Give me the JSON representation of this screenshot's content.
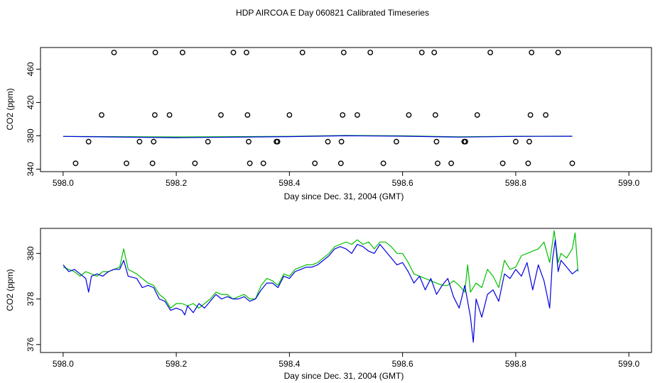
{
  "title": "HDP AIRCOA E  Day 060821  Calibrated Timeseries",
  "colors": {
    "green": "#00c000",
    "blue": "#0000e0",
    "axes": "#000000",
    "points": "#000000"
  },
  "chart_data": [
    {
      "type": "line",
      "xlabel": "Day since Dec. 31, 2004 (GMT)",
      "ylabel": "CO2 (ppm)",
      "xlim": [
        597.96,
        599.04
      ],
      "ylim": [
        337,
        486
      ],
      "xticks": [
        "598.0",
        "598.2",
        "598.4",
        "598.6",
        "598.8",
        "599.0"
      ],
      "yticks": [
        "340",
        "380",
        "420",
        "460"
      ],
      "scatter_points": [
        [
          598.022,
          347
        ],
        [
          598.045,
          373
        ],
        [
          598.068,
          405
        ],
        [
          598.09,
          480
        ],
        [
          598.112,
          347
        ],
        [
          598.135,
          373
        ],
        [
          598.158,
          347
        ],
        [
          598.16,
          373
        ],
        [
          598.162,
          405
        ],
        [
          598.163,
          480
        ],
        [
          598.188,
          405
        ],
        [
          598.211,
          480
        ],
        [
          598.233,
          347
        ],
        [
          598.256,
          373
        ],
        [
          598.279,
          405
        ],
        [
          598.301,
          480
        ],
        [
          598.324,
          480
        ],
        [
          598.326,
          405
        ],
        [
          598.328,
          373
        ],
        [
          598.33,
          347
        ],
        [
          598.354,
          347
        ],
        [
          598.377,
          373
        ],
        [
          598.379,
          373
        ],
        [
          598.4,
          405
        ],
        [
          598.423,
          480
        ],
        [
          598.445,
          347
        ],
        [
          598.468,
          373
        ],
        [
          598.491,
          347
        ],
        [
          598.492,
          373
        ],
        [
          598.494,
          405
        ],
        [
          598.496,
          480
        ],
        [
          598.52,
          405
        ],
        [
          598.543,
          480
        ],
        [
          598.566,
          347
        ],
        [
          598.589,
          373
        ],
        [
          598.611,
          405
        ],
        [
          598.634,
          480
        ],
        [
          598.656,
          480
        ],
        [
          598.658,
          405
        ],
        [
          598.66,
          373
        ],
        [
          598.662,
          347
        ],
        [
          598.686,
          347
        ],
        [
          598.709,
          373
        ],
        [
          598.711,
          373
        ],
        [
          598.732,
          405
        ],
        [
          598.755,
          480
        ],
        [
          598.777,
          347
        ],
        [
          598.8,
          373
        ],
        [
          598.822,
          347
        ],
        [
          598.824,
          373
        ],
        [
          598.826,
          405
        ],
        [
          598.828,
          480
        ],
        [
          598.853,
          405
        ],
        [
          598.875,
          480
        ],
        [
          598.9,
          347
        ]
      ],
      "series": [
        {
          "color": "green",
          "values": [
            [
              598.0,
              379.3
            ],
            [
              598.2,
              378.6
            ],
            [
              598.4,
              379.4
            ],
            [
              598.5,
              380.4
            ],
            [
              598.6,
              380.0
            ],
            [
              598.7,
              378.8
            ],
            [
              598.8,
              379.5
            ],
            [
              598.9,
              379.6
            ]
          ]
        },
        {
          "color": "blue",
          "values": [
            [
              598.0,
              379.3
            ],
            [
              598.2,
              377.8
            ],
            [
              598.4,
              379.1
            ],
            [
              598.5,
              380.1
            ],
            [
              598.6,
              379.6
            ],
            [
              598.7,
              378.5
            ],
            [
              598.8,
              379.3
            ],
            [
              598.9,
              379.5
            ]
          ]
        }
      ]
    },
    {
      "type": "line",
      "xlabel": "Day since Dec. 31, 2004 (GMT)",
      "ylabel": "CO2 (ppm)",
      "xlim": [
        597.96,
        599.04
      ],
      "ylim": [
        375.65,
        381.1
      ],
      "xticks": [
        "598.0",
        "598.2",
        "598.4",
        "598.6",
        "598.8",
        "599.0"
      ],
      "yticks": [
        "376",
        "378",
        "380"
      ],
      "series": [
        {
          "color": "green",
          "values": [
            [
              598.0,
              379.4
            ],
            [
              598.01,
              379.3
            ],
            [
              598.02,
              379.2
            ],
            [
              598.03,
              379.0
            ],
            [
              598.04,
              379.2
            ],
            [
              598.05,
              379.1
            ],
            [
              598.06,
              379.0
            ],
            [
              598.07,
              379.2
            ],
            [
              598.08,
              379.2
            ],
            [
              598.09,
              379.3
            ],
            [
              598.1,
              379.4
            ],
            [
              598.107,
              380.2
            ],
            [
              598.115,
              379.3
            ],
            [
              598.13,
              379.1
            ],
            [
              598.14,
              378.9
            ],
            [
              598.15,
              378.7
            ],
            [
              598.16,
              378.6
            ],
            [
              598.17,
              378.2
            ],
            [
              598.18,
              378.0
            ],
            [
              598.19,
              377.6
            ],
            [
              598.2,
              377.8
            ],
            [
              598.21,
              377.8
            ],
            [
              598.22,
              377.7
            ],
            [
              598.23,
              377.8
            ],
            [
              598.24,
              377.6
            ],
            [
              598.25,
              377.8
            ],
            [
              598.26,
              378.0
            ],
            [
              598.27,
              378.3
            ],
            [
              598.28,
              378.2
            ],
            [
              598.29,
              378.2
            ],
            [
              598.3,
              378.0
            ],
            [
              598.31,
              378.1
            ],
            [
              598.32,
              378.2
            ],
            [
              598.33,
              378.0
            ],
            [
              598.34,
              378.0
            ],
            [
              598.35,
              378.6
            ],
            [
              598.36,
              378.9
            ],
            [
              598.37,
              378.8
            ],
            [
              598.38,
              378.6
            ],
            [
              598.39,
              379.1
            ],
            [
              598.4,
              379.0
            ],
            [
              598.41,
              379.3
            ],
            [
              598.42,
              379.4
            ],
            [
              598.43,
              379.5
            ],
            [
              598.44,
              379.5
            ],
            [
              598.45,
              379.6
            ],
            [
              598.46,
              379.8
            ],
            [
              598.47,
              380.0
            ],
            [
              598.48,
              380.3
            ],
            [
              598.49,
              380.4
            ],
            [
              598.5,
              380.5
            ],
            [
              598.51,
              380.4
            ],
            [
              598.52,
              380.6
            ],
            [
              598.53,
              380.4
            ],
            [
              598.54,
              380.5
            ],
            [
              598.55,
              380.2
            ],
            [
              598.56,
              380.5
            ],
            [
              598.57,
              380.5
            ],
            [
              598.58,
              380.3
            ],
            [
              598.59,
              380.0
            ],
            [
              598.6,
              380.0
            ],
            [
              598.61,
              379.6
            ],
            [
              598.62,
              379.1
            ],
            [
              598.63,
              379.0
            ],
            [
              598.64,
              378.9
            ],
            [
              598.65,
              378.8
            ],
            [
              598.66,
              378.7
            ],
            [
              598.67,
              378.6
            ],
            [
              598.68,
              378.6
            ],
            [
              598.69,
              378.8
            ],
            [
              598.7,
              378.6
            ],
            [
              598.71,
              378.3
            ],
            [
              598.715,
              379.5
            ],
            [
              598.72,
              378.3
            ],
            [
              598.73,
              378.7
            ],
            [
              598.74,
              378.5
            ],
            [
              598.75,
              379.3
            ],
            [
              598.76,
              379.0
            ],
            [
              598.77,
              378.5
            ],
            [
              598.78,
              379.7
            ],
            [
              598.79,
              379.3
            ],
            [
              598.8,
              379.4
            ],
            [
              598.81,
              379.9
            ],
            [
              598.82,
              380.0
            ],
            [
              598.83,
              380.1
            ],
            [
              598.84,
              380.2
            ],
            [
              598.85,
              380.5
            ],
            [
              598.86,
              379.6
            ],
            [
              598.868,
              381.0
            ],
            [
              598.875,
              379.6
            ],
            [
              598.88,
              380.0
            ],
            [
              598.89,
              379.8
            ],
            [
              598.9,
              380.2
            ],
            [
              598.905,
              380.9
            ],
            [
              598.91,
              379.2
            ]
          ]
        },
        {
          "color": "blue",
          "values": [
            [
              598.0,
              379.5
            ],
            [
              598.01,
              379.2
            ],
            [
              598.02,
              379.3
            ],
            [
              598.03,
              379.1
            ],
            [
              598.04,
              378.9
            ],
            [
              598.045,
              378.3
            ],
            [
              598.05,
              379.0
            ],
            [
              598.06,
              379.1
            ],
            [
              598.07,
              379.0
            ],
            [
              598.08,
              379.2
            ],
            [
              598.09,
              379.3
            ],
            [
              598.1,
              379.3
            ],
            [
              598.107,
              379.7
            ],
            [
              598.115,
              379.0
            ],
            [
              598.13,
              378.9
            ],
            [
              598.14,
              378.5
            ],
            [
              598.15,
              378.6
            ],
            [
              598.16,
              378.5
            ],
            [
              598.17,
              378.0
            ],
            [
              598.18,
              377.9
            ],
            [
              598.19,
              377.5
            ],
            [
              598.2,
              377.6
            ],
            [
              598.21,
              377.5
            ],
            [
              598.215,
              377.3
            ],
            [
              598.22,
              377.7
            ],
            [
              598.23,
              377.4
            ],
            [
              598.24,
              377.8
            ],
            [
              598.25,
              377.6
            ],
            [
              598.26,
              377.9
            ],
            [
              598.27,
              378.2
            ],
            [
              598.28,
              378.0
            ],
            [
              598.29,
              378.1
            ],
            [
              598.3,
              378.0
            ],
            [
              598.31,
              378.0
            ],
            [
              598.32,
              378.1
            ],
            [
              598.33,
              377.9
            ],
            [
              598.34,
              378.0
            ],
            [
              598.35,
              378.4
            ],
            [
              598.36,
              378.7
            ],
            [
              598.37,
              378.7
            ],
            [
              598.38,
              378.5
            ],
            [
              598.39,
              379.0
            ],
            [
              598.4,
              378.9
            ],
            [
              598.41,
              379.2
            ],
            [
              598.42,
              379.3
            ],
            [
              598.43,
              379.4
            ],
            [
              598.44,
              379.4
            ],
            [
              598.45,
              379.5
            ],
            [
              598.46,
              379.7
            ],
            [
              598.47,
              379.9
            ],
            [
              598.48,
              380.2
            ],
            [
              598.49,
              380.3
            ],
            [
              598.5,
              380.2
            ],
            [
              598.51,
              380.0
            ],
            [
              598.52,
              380.4
            ],
            [
              598.53,
              380.3
            ],
            [
              598.54,
              380.1
            ],
            [
              598.55,
              380.0
            ],
            [
              598.56,
              380.4
            ],
            [
              598.57,
              380.1
            ],
            [
              598.58,
              379.8
            ],
            [
              598.59,
              379.5
            ],
            [
              598.6,
              379.6
            ],
            [
              598.61,
              379.2
            ],
            [
              598.62,
              378.7
            ],
            [
              598.63,
              379.0
            ],
            [
              598.64,
              378.4
            ],
            [
              598.65,
              378.9
            ],
            [
              598.66,
              378.2
            ],
            [
              598.67,
              378.6
            ],
            [
              598.68,
              378.9
            ],
            [
              598.69,
              378.1
            ],
            [
              598.7,
              377.6
            ],
            [
              598.71,
              378.6
            ],
            [
              598.72,
              377.2
            ],
            [
              598.725,
              376.1
            ],
            [
              598.73,
              378.0
            ],
            [
              598.74,
              377.2
            ],
            [
              598.75,
              378.2
            ],
            [
              598.76,
              378.4
            ],
            [
              598.77,
              377.9
            ],
            [
              598.78,
              379.1
            ],
            [
              598.79,
              378.9
            ],
            [
              598.8,
              379.3
            ],
            [
              598.81,
              379.0
            ],
            [
              598.82,
              379.6
            ],
            [
              598.83,
              378.4
            ],
            [
              598.84,
              379.5
            ],
            [
              598.85,
              378.8
            ],
            [
              598.86,
              377.6
            ],
            [
              598.865,
              379.7
            ],
            [
              598.87,
              380.6
            ],
            [
              598.875,
              379.2
            ],
            [
              598.88,
              379.7
            ],
            [
              598.89,
              379.4
            ],
            [
              598.9,
              379.1
            ],
            [
              598.91,
              379.3
            ]
          ]
        }
      ]
    }
  ]
}
